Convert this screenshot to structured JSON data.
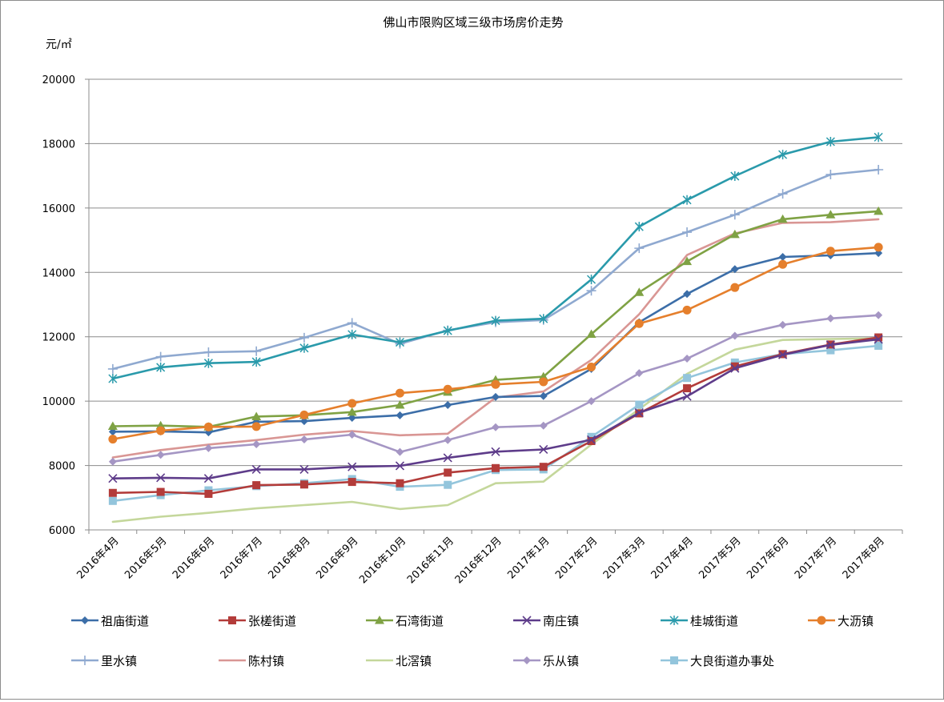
{
  "chart_data": {
    "type": "line",
    "title": "佛山市限购区域三级市场房价走势",
    "ylabel": "元/㎡",
    "xlabel": "",
    "ylim": [
      6000,
      20000
    ],
    "yticks": [
      6000,
      8000,
      10000,
      12000,
      14000,
      16000,
      18000,
      20000
    ],
    "grid": true,
    "legend_position": "bottom",
    "categories": [
      "2016年4月",
      "2016年5月",
      "2016年6月",
      "2016年7月",
      "2016年8月",
      "2016年9月",
      "2016年10月",
      "2016年11月",
      "2016年12月",
      "2017年1月",
      "2017年2月",
      "2017年3月",
      "2017年4月",
      "2017年5月",
      "2017年6月",
      "2017年7月",
      "2017年8月"
    ],
    "series": [
      {
        "name": "祖庙街道",
        "color": "#3c6ea8",
        "marker": "diamond",
        "values": [
          9050,
          9060,
          9030,
          9360,
          9380,
          9480,
          9560,
          9880,
          10130,
          10160,
          11000,
          12450,
          13330,
          14100,
          14480,
          14530,
          14600
        ]
      },
      {
        "name": "张槎街道",
        "color": "#b33c3a",
        "marker": "square",
        "values": [
          7150,
          7180,
          7120,
          7390,
          7410,
          7490,
          7450,
          7780,
          7920,
          7960,
          8760,
          9620,
          10400,
          11080,
          11460,
          11760,
          11980
        ]
      },
      {
        "name": "石湾街道",
        "color": "#7fa244",
        "marker": "triangle",
        "values": [
          9220,
          9240,
          9200,
          9520,
          9560,
          9660,
          9880,
          10280,
          10660,
          10760,
          12080,
          13380,
          14340,
          15180,
          15650,
          15790,
          15900
        ]
      },
      {
        "name": "南庄镇",
        "color": "#5e3c8a",
        "marker": "x",
        "values": [
          7600,
          7620,
          7600,
          7880,
          7880,
          7960,
          7990,
          8240,
          8430,
          8500,
          8800,
          9640,
          10150,
          11020,
          11440,
          11750,
          11920
        ]
      },
      {
        "name": "桂城街道",
        "color": "#2a9aab",
        "marker": "star",
        "values": [
          10700,
          11050,
          11180,
          11220,
          11650,
          12070,
          11830,
          12190,
          12500,
          12560,
          13780,
          15420,
          16250,
          16990,
          17660,
          18060,
          18200
        ]
      },
      {
        "name": "大沥镇",
        "color": "#e57f2c",
        "marker": "circle",
        "values": [
          8820,
          9080,
          9200,
          9210,
          9570,
          9930,
          10250,
          10370,
          10520,
          10600,
          11060,
          12410,
          12830,
          13530,
          14250,
          14660,
          14780
        ]
      },
      {
        "name": "里水镇",
        "color": "#8fa9d0",
        "marker": "plus",
        "values": [
          11000,
          11380,
          11520,
          11550,
          11970,
          12430,
          11780,
          12200,
          12450,
          12520,
          13430,
          14750,
          15250,
          15790,
          16440,
          17040,
          17190
        ]
      },
      {
        "name": "陈村镇",
        "color": "#d99694",
        "marker": "none",
        "values": [
          8250,
          8480,
          8650,
          8790,
          8960,
          9070,
          8940,
          8990,
          10110,
          10300,
          11280,
          12700,
          14540,
          15210,
          15540,
          15560,
          15650
        ]
      },
      {
        "name": "北滘镇",
        "color": "#c4d79b",
        "marker": "none",
        "values": [
          6250,
          6410,
          6530,
          6670,
          6770,
          6870,
          6650,
          6770,
          7450,
          7500,
          8650,
          9750,
          10850,
          11600,
          11900,
          11930,
          11950
        ]
      },
      {
        "name": "乐从镇",
        "color": "#a596c4",
        "marker": "diamond",
        "values": [
          8120,
          8330,
          8540,
          8660,
          8810,
          8960,
          8420,
          8790,
          9190,
          9240,
          10000,
          10870,
          11320,
          12030,
          12370,
          12570,
          12670
        ]
      },
      {
        "name": "大良街道办事处",
        "color": "#93c5dc",
        "marker": "square",
        "values": [
          6900,
          7080,
          7230,
          7360,
          7450,
          7580,
          7340,
          7400,
          7860,
          7880,
          8890,
          9890,
          10720,
          11200,
          11460,
          11580,
          11720
        ]
      }
    ]
  }
}
